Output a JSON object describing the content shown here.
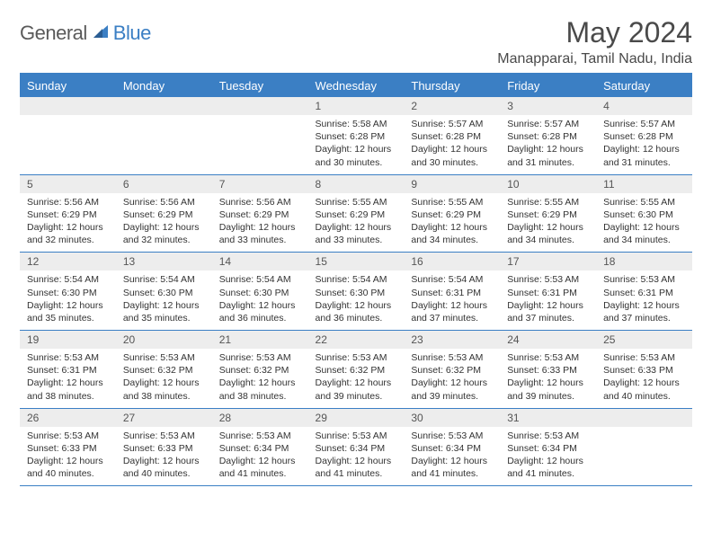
{
  "logo": {
    "text1": "General",
    "text2": "Blue"
  },
  "header": {
    "month": "May 2024",
    "location": "Manapparai, Tamil Nadu, India"
  },
  "colors": {
    "accent": "#3b7fc4",
    "header_text": "#ffffff",
    "daynum_bg": "#ededed"
  },
  "daynames": [
    "Sunday",
    "Monday",
    "Tuesday",
    "Wednesday",
    "Thursday",
    "Friday",
    "Saturday"
  ],
  "weeks": [
    [
      null,
      null,
      null,
      {
        "d": "1",
        "sr": "5:58 AM",
        "ss": "6:28 PM",
        "dl": "12 hours and 30 minutes."
      },
      {
        "d": "2",
        "sr": "5:57 AM",
        "ss": "6:28 PM",
        "dl": "12 hours and 30 minutes."
      },
      {
        "d": "3",
        "sr": "5:57 AM",
        "ss": "6:28 PM",
        "dl": "12 hours and 31 minutes."
      },
      {
        "d": "4",
        "sr": "5:57 AM",
        "ss": "6:28 PM",
        "dl": "12 hours and 31 minutes."
      }
    ],
    [
      {
        "d": "5",
        "sr": "5:56 AM",
        "ss": "6:29 PM",
        "dl": "12 hours and 32 minutes."
      },
      {
        "d": "6",
        "sr": "5:56 AM",
        "ss": "6:29 PM",
        "dl": "12 hours and 32 minutes."
      },
      {
        "d": "7",
        "sr": "5:56 AM",
        "ss": "6:29 PM",
        "dl": "12 hours and 33 minutes."
      },
      {
        "d": "8",
        "sr": "5:55 AM",
        "ss": "6:29 PM",
        "dl": "12 hours and 33 minutes."
      },
      {
        "d": "9",
        "sr": "5:55 AM",
        "ss": "6:29 PM",
        "dl": "12 hours and 34 minutes."
      },
      {
        "d": "10",
        "sr": "5:55 AM",
        "ss": "6:29 PM",
        "dl": "12 hours and 34 minutes."
      },
      {
        "d": "11",
        "sr": "5:55 AM",
        "ss": "6:30 PM",
        "dl": "12 hours and 34 minutes."
      }
    ],
    [
      {
        "d": "12",
        "sr": "5:54 AM",
        "ss": "6:30 PM",
        "dl": "12 hours and 35 minutes."
      },
      {
        "d": "13",
        "sr": "5:54 AM",
        "ss": "6:30 PM",
        "dl": "12 hours and 35 minutes."
      },
      {
        "d": "14",
        "sr": "5:54 AM",
        "ss": "6:30 PM",
        "dl": "12 hours and 36 minutes."
      },
      {
        "d": "15",
        "sr": "5:54 AM",
        "ss": "6:30 PM",
        "dl": "12 hours and 36 minutes."
      },
      {
        "d": "16",
        "sr": "5:54 AM",
        "ss": "6:31 PM",
        "dl": "12 hours and 37 minutes."
      },
      {
        "d": "17",
        "sr": "5:53 AM",
        "ss": "6:31 PM",
        "dl": "12 hours and 37 minutes."
      },
      {
        "d": "18",
        "sr": "5:53 AM",
        "ss": "6:31 PM",
        "dl": "12 hours and 37 minutes."
      }
    ],
    [
      {
        "d": "19",
        "sr": "5:53 AM",
        "ss": "6:31 PM",
        "dl": "12 hours and 38 minutes."
      },
      {
        "d": "20",
        "sr": "5:53 AM",
        "ss": "6:32 PM",
        "dl": "12 hours and 38 minutes."
      },
      {
        "d": "21",
        "sr": "5:53 AM",
        "ss": "6:32 PM",
        "dl": "12 hours and 38 minutes."
      },
      {
        "d": "22",
        "sr": "5:53 AM",
        "ss": "6:32 PM",
        "dl": "12 hours and 39 minutes."
      },
      {
        "d": "23",
        "sr": "5:53 AM",
        "ss": "6:32 PM",
        "dl": "12 hours and 39 minutes."
      },
      {
        "d": "24",
        "sr": "5:53 AM",
        "ss": "6:33 PM",
        "dl": "12 hours and 39 minutes."
      },
      {
        "d": "25",
        "sr": "5:53 AM",
        "ss": "6:33 PM",
        "dl": "12 hours and 40 minutes."
      }
    ],
    [
      {
        "d": "26",
        "sr": "5:53 AM",
        "ss": "6:33 PM",
        "dl": "12 hours and 40 minutes."
      },
      {
        "d": "27",
        "sr": "5:53 AM",
        "ss": "6:33 PM",
        "dl": "12 hours and 40 minutes."
      },
      {
        "d": "28",
        "sr": "5:53 AM",
        "ss": "6:34 PM",
        "dl": "12 hours and 41 minutes."
      },
      {
        "d": "29",
        "sr": "5:53 AM",
        "ss": "6:34 PM",
        "dl": "12 hours and 41 minutes."
      },
      {
        "d": "30",
        "sr": "5:53 AM",
        "ss": "6:34 PM",
        "dl": "12 hours and 41 minutes."
      },
      {
        "d": "31",
        "sr": "5:53 AM",
        "ss": "6:34 PM",
        "dl": "12 hours and 41 minutes."
      },
      null
    ]
  ],
  "labels": {
    "sunrise": "Sunrise:",
    "sunset": "Sunset:",
    "daylight": "Daylight:"
  }
}
